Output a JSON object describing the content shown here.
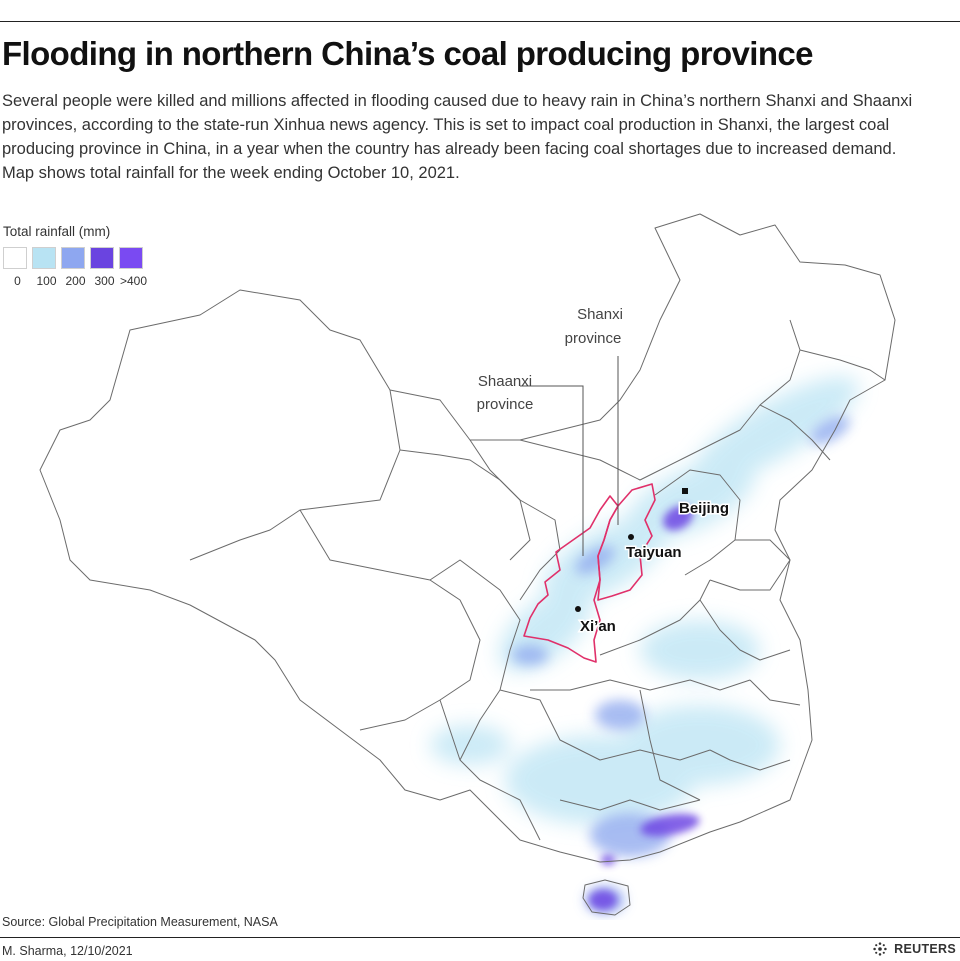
{
  "title": "Flooding in northern China’s coal producing province",
  "intro": [
    "Several people were killed and millions affected in flooding caused due to heavy rain in China’s northern Shanxi and Shaanxi provinces, according to the state-run Xinhua news agency. This is set to impact coal production in Shanxi, the largest coal producing province in China, in a year when the country has already been facing coal shortages due to increased demand.",
    "Map shows total rainfall for the week ending October 10, 2021."
  ],
  "legend": {
    "title": "Total rainfall (mm)",
    "labels": [
      "0",
      "100",
      "200",
      "300",
      ">400"
    ],
    "colors": [
      "#ffffff",
      "#b8e3f3",
      "#8ea7f0",
      "#6a44e0",
      "#7a4af2"
    ]
  },
  "map": {
    "callouts": {
      "shanxi": [
        "Shanxi",
        "province"
      ],
      "shaanxi": [
        "Shaanxi",
        "province"
      ]
    },
    "cities": {
      "beijing": "Beijing",
      "taiyuan": "Taiyuan",
      "xian": "Xi’an"
    },
    "colors": {
      "border": "#6b6b6b",
      "highlight": "#e0306a",
      "rain_light": "#c3e7f5",
      "rain_mid": "#93acef",
      "rain_heavy": "#6e46e3"
    }
  },
  "source": "Source: Global Precipitation Measurement, NASA",
  "byline": "M. Sharma,  12/10/2021",
  "publisher": "REUTERS"
}
